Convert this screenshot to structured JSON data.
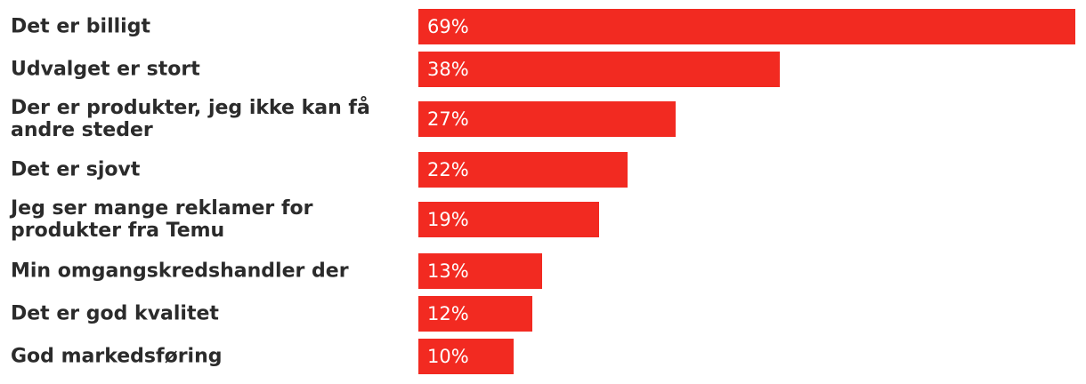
{
  "chart_data": {
    "type": "bar",
    "orientation": "horizontal",
    "categories": [
      "Det er billigt",
      "Udvalget er stort",
      "Der er produkter, jeg ikke kan få andre steder",
      "Det er sjovt",
      "Jeg ser mange reklamer for produkter fra Temu",
      "Min omgangskredshandler der",
      "Det er god kvalitet",
      "God markedsføring"
    ],
    "values": [
      69,
      38,
      27,
      22,
      19,
      13,
      12,
      10
    ],
    "value_labels": [
      "69%",
      "38%",
      "27%",
      "22%",
      "19%",
      "13%",
      "12%",
      "10%"
    ],
    "unit": "%",
    "xlim": [
      0,
      69
    ],
    "grid": false,
    "legend": "none",
    "bar_color": "#f22a21"
  }
}
